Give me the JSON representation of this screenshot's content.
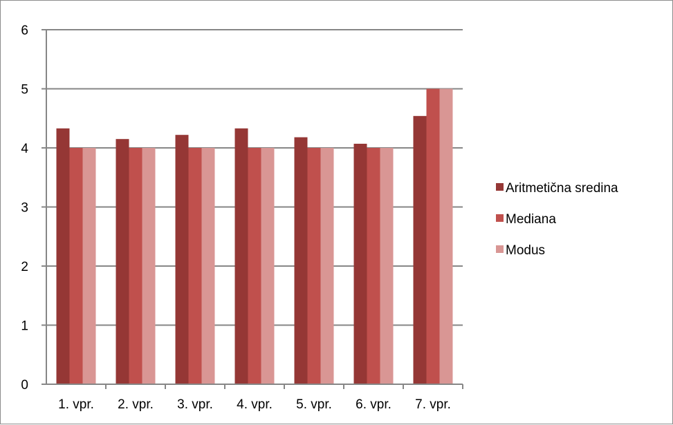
{
  "chart_data": {
    "type": "bar",
    "categories": [
      "1. vpr.",
      "2. vpr.",
      "3. vpr.",
      "4. vpr.",
      "5. vpr.",
      "6. vpr.",
      "7. vpr."
    ],
    "series": [
      {
        "name": "Aritmetična sredina",
        "color": "#953735",
        "values": [
          4.33,
          4.15,
          4.22,
          4.33,
          4.18,
          4.07,
          4.54
        ]
      },
      {
        "name": "Mediana",
        "color": "#c0504d",
        "values": [
          4,
          4,
          4,
          4,
          4,
          4,
          5
        ]
      },
      {
        "name": "Modus",
        "color": "#d99694",
        "values": [
          4,
          4,
          4,
          4,
          4,
          4,
          5
        ]
      }
    ],
    "ylim": [
      0,
      6
    ],
    "yticks": [
      "0",
      "1",
      "2",
      "3",
      "4",
      "5",
      "6"
    ],
    "grid": true,
    "legend": "right",
    "title": "",
    "xlabel": "",
    "ylabel": ""
  }
}
